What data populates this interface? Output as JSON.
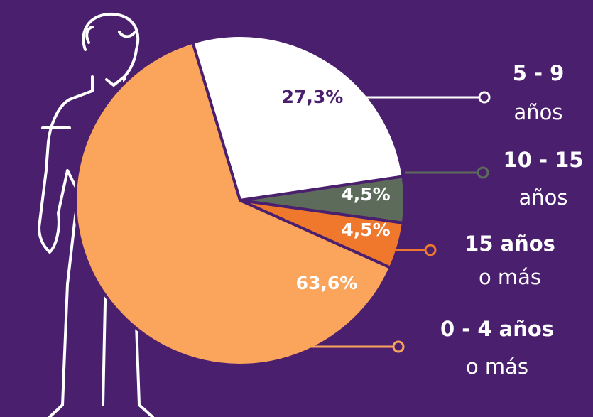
{
  "chart_data": {
    "type": "pie",
    "categories": [
      "5 - 9",
      "10 - 15",
      "15 años",
      "0 - 4 años"
    ],
    "category_sublabels": [
      "años",
      "años",
      "o más",
      "o más"
    ],
    "values": [
      27.3,
      4.5,
      4.5,
      63.6
    ],
    "value_labels": [
      "27,3%",
      "4,5%",
      "4,5%",
      "63,6%"
    ],
    "colors": [
      "#ffffff",
      "#5d6b5b",
      "#f0782d",
      "#fba45c"
    ],
    "label_colors": [
      "#4a1f6e",
      "#ffffff",
      "#ffffff",
      "#ffffff"
    ]
  }
}
